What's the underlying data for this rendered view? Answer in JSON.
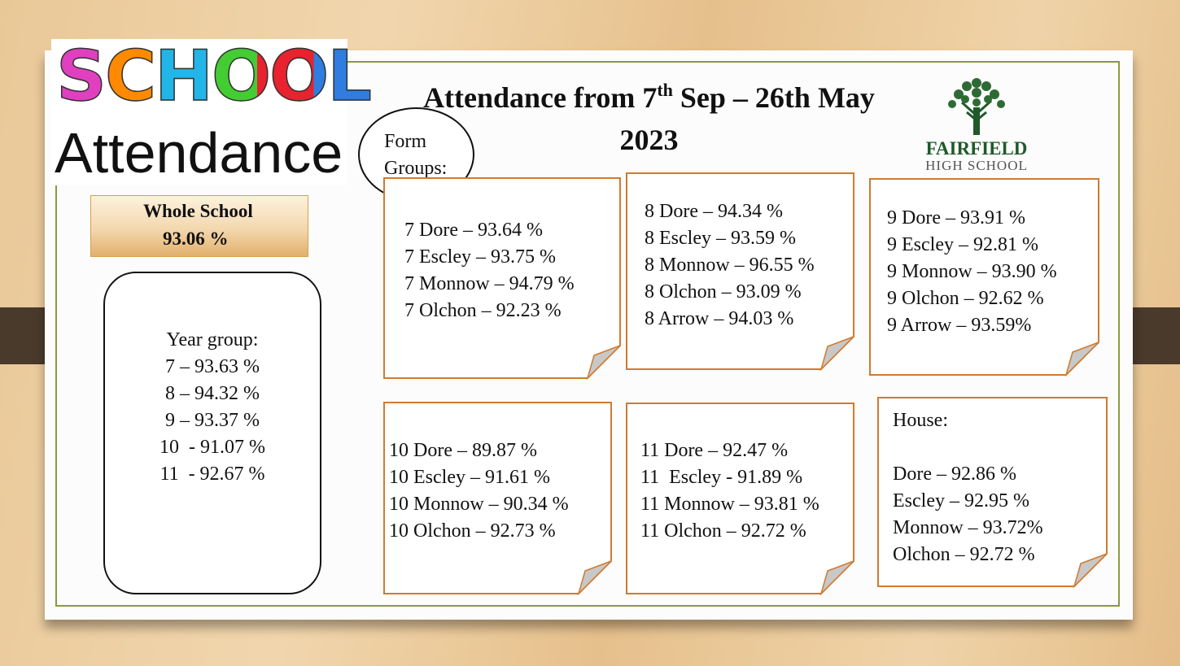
{
  "logo": {
    "line1": "SCHOOL",
    "line2": "Attendance"
  },
  "title": [
    "Attendance from 7",
    "th",
    " Sep – 26th May 2023"
  ],
  "school": {
    "name": "FAIRFIELD",
    "subtitle": "HIGH SCHOOL"
  },
  "whole_school": {
    "label": "Whole School",
    "value": "93.06 %"
  },
  "year_group": {
    "heading": "Year group:",
    "lines": [
      "7 – 93.63 %",
      "8 – 94.32 %",
      "9 – 93.37 %",
      "10  - 91.07 %",
      "11  - 92.67 %"
    ]
  },
  "form_groups_label": "Form Groups:",
  "notes": [
    {
      "lines": [
        "7 Dore – 93.64 %",
        "7 Escley – 93.75 %",
        "7 Monnow – 94.79 %",
        "7 Olchon – 92.23 %"
      ]
    },
    {
      "lines": [
        "8 Dore – 94.34 %",
        "8 Escley – 93.59 %",
        "8 Monnow – 96.55 %",
        "8 Olchon – 93.09 %",
        "8 Arrow – 94.03 %"
      ]
    },
    {
      "lines": [
        "9 Dore – 93.91 %",
        "9 Escley – 92.81 %",
        "9 Monnow – 93.90 %",
        "9 Olchon – 92.62 %",
        "9 Arrow – 93.59%"
      ]
    },
    {
      "lines": [
        "10 Dore – 89.87 %",
        "10 Escley – 91.61 %",
        "10 Monnow – 90.34 %",
        "10 Olchon – 92.73 %"
      ]
    },
    {
      "lines": [
        "11 Dore – 92.47 %",
        "11  Escley - 91.89 %",
        "11 Monnow – 93.81 %",
        "11 Olchon – 92.72 %"
      ]
    },
    {
      "heading": "House:",
      "lines": [
        "Dore – 92.86 %",
        "Escley – 92.95 %",
        "Monnow – 93.72%",
        "Olchon – 92.72 %"
      ]
    }
  ]
}
